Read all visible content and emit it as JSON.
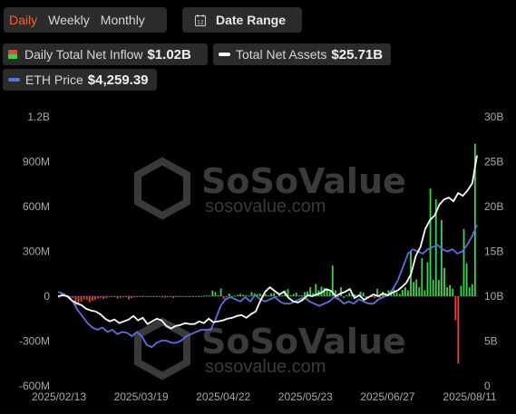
{
  "tabs": [
    {
      "label": "Daily",
      "active": true
    },
    {
      "label": "Weekly",
      "active": false
    },
    {
      "label": "Monthly",
      "active": false
    }
  ],
  "date_range": {
    "label": "Date Range",
    "icon": "calendar-icon",
    "icon_text": "12"
  },
  "legend": {
    "inflow_label": "Daily Total Net Inflow",
    "inflow_value": "$1.02B",
    "assets_label": "Total Net Assets",
    "assets_value": "$25.71B",
    "price_label": "ETH Price",
    "price_value": "$4,259.39"
  },
  "watermark": {
    "brand": "SoSoValue",
    "url": "sosovalue.com"
  },
  "colors": {
    "positive": "#3ecf4c",
    "negative": "#e8403a",
    "assets": "#ffffff",
    "price": "#5b6fe0",
    "accent": "#ff5a2a"
  },
  "chart_data": {
    "type": "bar",
    "x_tick_labels": [
      "2025/02/13",
      "2025/03/19",
      "2025/04/22",
      "2025/05/23",
      "2025/06/27",
      "2025/08/11"
    ],
    "left_axis": {
      "ticks": [
        "1.2B",
        "900M",
        "600M",
        "300M",
        "0",
        "-300M",
        "-600M"
      ],
      "range": [
        -600,
        1200
      ],
      "unit": "M"
    },
    "right_axis": {
      "ticks": [
        "30B",
        "25B",
        "20B",
        "15B",
        "10B",
        "5B",
        "0"
      ],
      "range": [
        0,
        30
      ],
      "unit": "B"
    },
    "grid": false,
    "series": [
      {
        "name": "Daily Total Net Inflow",
        "type": "bar",
        "values": [
          -10,
          22,
          18,
          -8,
          -15,
          -12,
          -70,
          -55,
          -35,
          -20,
          -25,
          -40,
          -30,
          -22,
          -15,
          -10,
          -18,
          -12,
          -8,
          -6,
          -5,
          -15,
          -10,
          -8,
          -5,
          -20,
          -12,
          -8,
          -4,
          -3,
          -2,
          -5,
          -6,
          -4,
          -3,
          -2,
          -2,
          -8,
          -10,
          -5,
          -2,
          -12,
          -6,
          -3,
          -2,
          -5,
          -2,
          -3,
          -1,
          -2,
          -3,
          -1,
          4,
          5,
          3,
          38,
          28,
          6,
          52,
          -20,
          -8,
          18,
          -6,
          4,
          8,
          15,
          10,
          6,
          4,
          28,
          20,
          14,
          18,
          8,
          14,
          6,
          18,
          22,
          -6,
          10,
          6,
          38,
          48,
          8,
          15,
          24,
          5,
          6,
          28,
          32,
          60,
          22,
          82,
          40,
          65,
          55,
          45,
          30,
          205,
          40,
          -10,
          60,
          -12,
          8,
          22,
          12,
          12,
          10,
          30,
          25,
          -10,
          -8,
          -5,
          -12,
          50,
          -10,
          30,
          20,
          40,
          32,
          45,
          25,
          15,
          42,
          60,
          40,
          305,
          95,
          112,
          60,
          255,
          40,
          228,
          720,
          110,
          650,
          110,
          510,
          190,
          60,
          75,
          50,
          -160,
          -450,
          70,
          450,
          220,
          60,
          80,
          1020
        ]
      },
      {
        "name": "Total Net Assets",
        "type": "line",
        "values": [
          10.0,
          10.1,
          10.0,
          9.5,
          9.2,
          9.0,
          8.6,
          8.4,
          8.3,
          8.0,
          7.5,
          7.2,
          7.4,
          7.0,
          7.2,
          7.4,
          7.8,
          7.3,
          7.6,
          6.9,
          7.2,
          7.5,
          7.3,
          6.7,
          6.4,
          6.7,
          6.8,
          7.0,
          6.9,
          6.9,
          7.2,
          7.0,
          7.5,
          7.1,
          7.2,
          7.3,
          7.5,
          7.6,
          7.8,
          7.9,
          7.6,
          8.0,
          8.3,
          9.5,
          10.5,
          11.0,
          10.6,
          10.2,
          10.5,
          9.8,
          9.4,
          9.3,
          9.6,
          10.1,
          10.0,
          10.2,
          10.4,
          10.8,
          10.6,
          10.0,
          10.3,
          10.5,
          10.8,
          9.8,
          10.1,
          9.6,
          9.9,
          10.2,
          10.0,
          10.3,
          10.1,
          10.4,
          10.6,
          11.0,
          11.5,
          12.5,
          14.5,
          15.5,
          17.5,
          18.5,
          19.0,
          20.2,
          20.8,
          21.0,
          20.6,
          21.5,
          21.2,
          21.8,
          22.6,
          25.71
        ]
      },
      {
        "name": "ETH Price",
        "type": "line",
        "values": [
          2720,
          2680,
          2600,
          2500,
          2300,
          2150,
          2000,
          1900,
          1850,
          1900,
          1800,
          1850,
          1750,
          1800,
          1780,
          1700,
          1800,
          1700,
          1500,
          1450,
          1550,
          1600,
          1600,
          1550,
          1550,
          1600,
          1700,
          1750,
          1800,
          1850,
          1850,
          1850,
          2100,
          2400,
          2550,
          2600,
          2550,
          2500,
          2600,
          2500,
          2650,
          2550,
          2500,
          2550,
          2600,
          2500,
          2450,
          2450,
          2500,
          2550,
          2600,
          2500,
          2450,
          2400,
          2450,
          2500,
          2600,
          2550,
          2450,
          2500,
          2450,
          2550,
          2500,
          2450,
          2450,
          2550,
          2600,
          2650,
          2800,
          3000,
          3300,
          3600,
          3700,
          3650,
          3600,
          3700,
          3750,
          3800,
          3700,
          3650,
          3700,
          3600,
          3650,
          3800,
          4000,
          4259.39
        ]
      }
    ]
  }
}
